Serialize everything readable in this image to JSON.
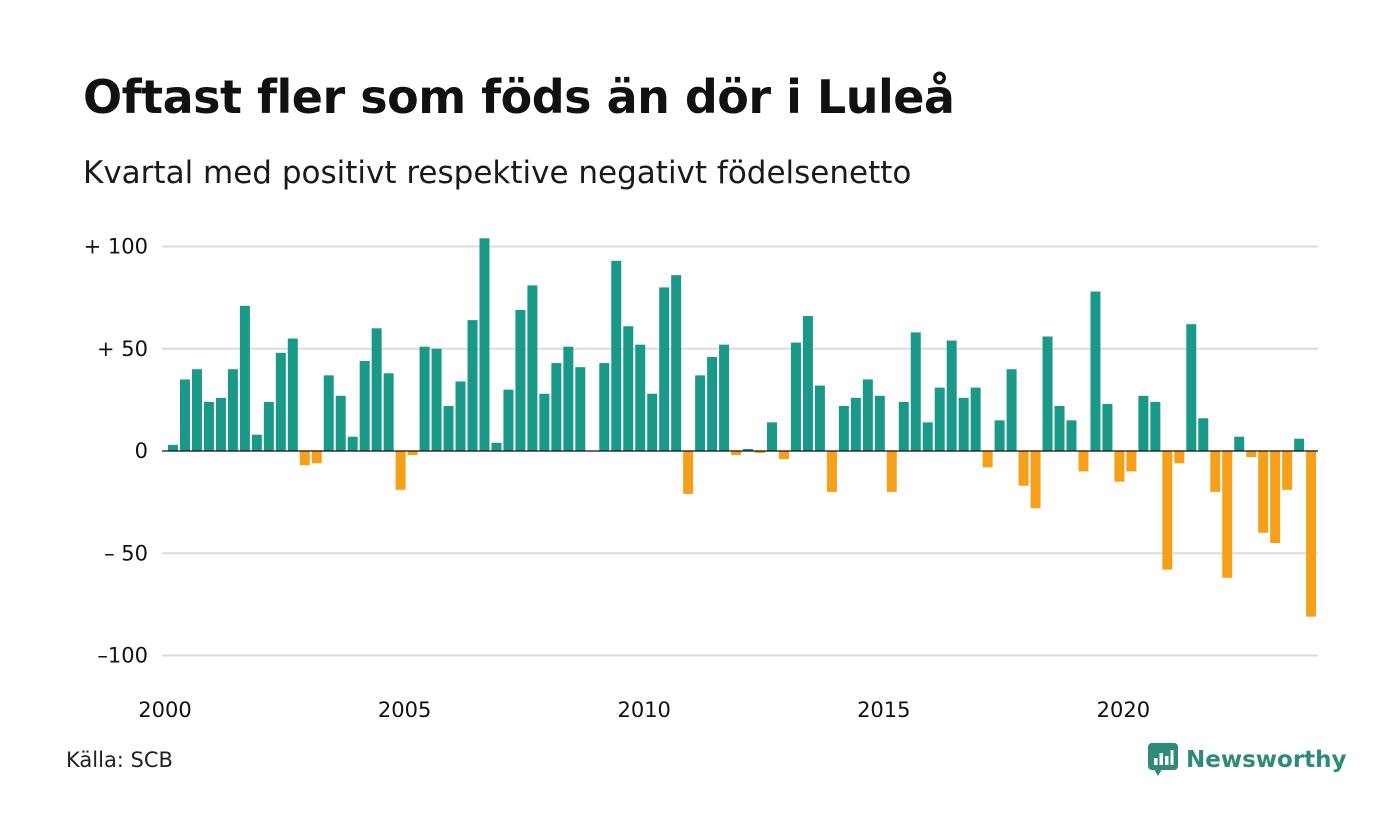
{
  "title": "Oftast fler som föds än dör i Luleå",
  "subtitle": "Kvartal med positivt respektive negativt födelsenetto",
  "source": "Källa: SCB",
  "brand": "Newsworthy",
  "colors": {
    "positive": "#1a9988",
    "negative": "#f5a01a",
    "grid": "#dddddd",
    "brand": "#2e8b7a"
  },
  "chart_data": {
    "type": "bar",
    "title": "Oftast fler som föds än dör i Luleå",
    "subtitle": "Kvartal med positivt respektive negativt födelsenetto",
    "x_start": "2000-Q1",
    "quarters_per_year": 4,
    "ylim": [
      -110,
      105
    ],
    "yticks": [
      100,
      50,
      0,
      -50,
      -100
    ],
    "ytick_labels": [
      "+ 100",
      "+  50",
      "0",
      "– 50",
      "–100"
    ],
    "xticks": [
      "2000",
      "2005",
      "2010",
      "2015",
      "2020"
    ],
    "grid": true,
    "series": [
      {
        "values": [
          3,
          35,
          40,
          24,
          26,
          40,
          71,
          8,
          24,
          48,
          55,
          -7,
          -6,
          37,
          27,
          7,
          44,
          60,
          38,
          -19,
          -2,
          51,
          50,
          22,
          34,
          64,
          104,
          4,
          30,
          69,
          81,
          28,
          43,
          51,
          41,
          0,
          43,
          93,
          61,
          52,
          28,
          80,
          86,
          -21,
          37,
          46,
          52,
          -2,
          1,
          -1,
          14,
          -4,
          53,
          66,
          32,
          -20,
          22,
          26,
          35,
          27,
          -20,
          24,
          58,
          14,
          31,
          54,
          26,
          31,
          -8,
          15,
          40,
          -17,
          -28,
          56,
          22,
          15,
          -10,
          78,
          23,
          -15,
          -10,
          27,
          24,
          -58,
          -6,
          62,
          16,
          -20,
          -62,
          7,
          -3,
          -40,
          -45,
          -19,
          6,
          -81
        ]
      }
    ]
  }
}
